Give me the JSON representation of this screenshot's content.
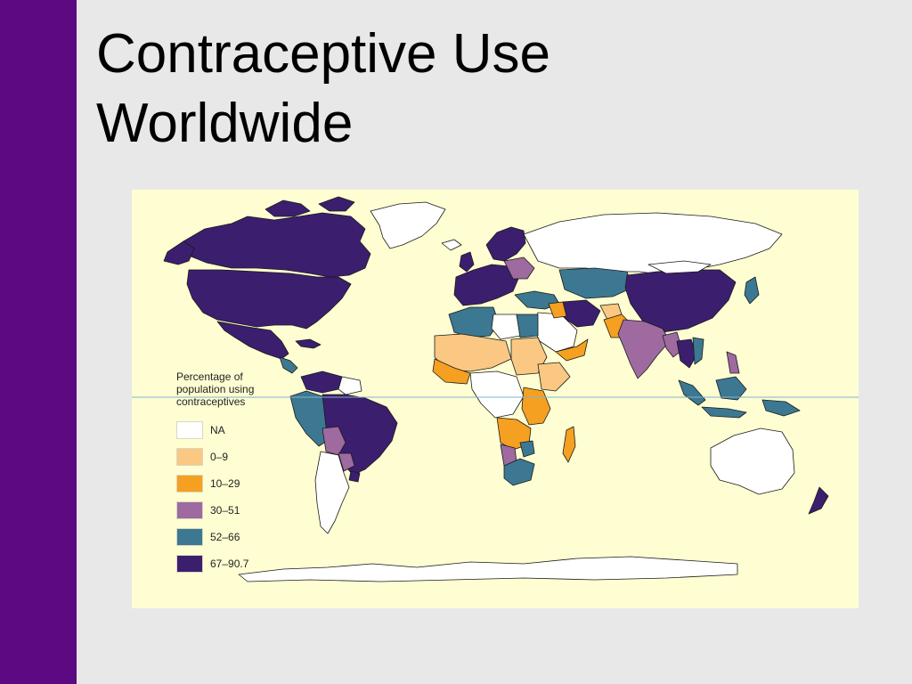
{
  "slide": {
    "title_line1": "Contraceptive Use",
    "title_line2": "Worldwide"
  },
  "map": {
    "legend": {
      "heading_line1": "Percentage of",
      "heading_line2": "population using",
      "heading_line3": "contraceptives",
      "categories": [
        {
          "label": "NA",
          "color": "#ffffff"
        },
        {
          "label": "0–9",
          "color": "#fac882"
        },
        {
          "label": "10–29",
          "color": "#f5a020"
        },
        {
          "label": "30–51",
          "color": "#9e6aa0"
        },
        {
          "label": "52–66",
          "color": "#3c7891"
        },
        {
          "label": "67–90.7",
          "color": "#3c1e6e"
        }
      ]
    },
    "colors": {
      "background": "#fefed2",
      "equator": "#7fb3d0",
      "outline": "#1a1a1a"
    }
  }
}
